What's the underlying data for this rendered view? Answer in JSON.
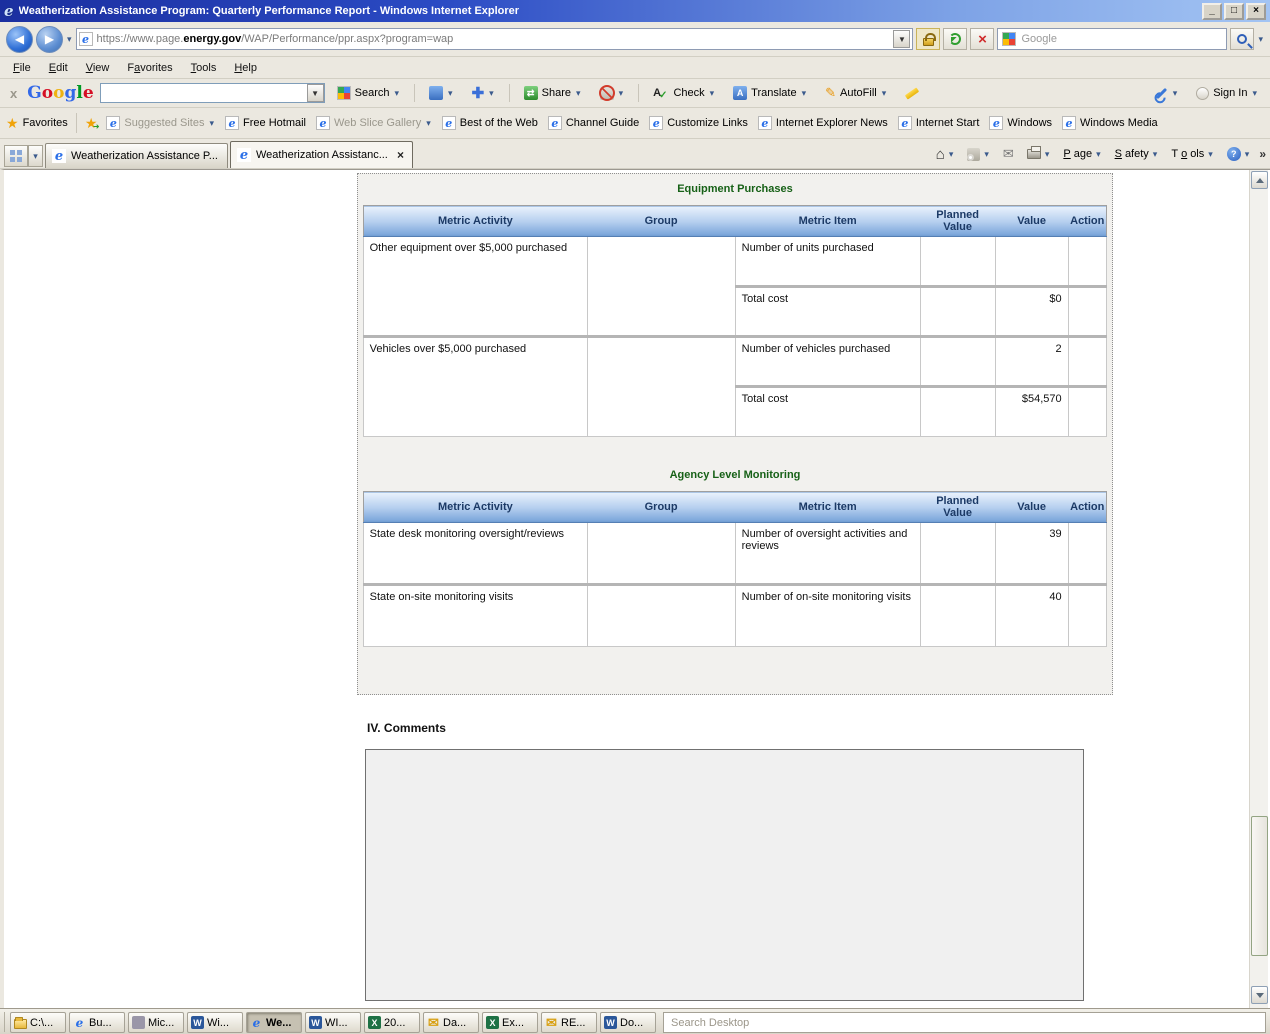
{
  "window": {
    "title": "Weatherization Assistance Program: Quarterly Performance Report - Windows Internet Explorer"
  },
  "navigation": {
    "url_prefix": "https://www.page.",
    "url_domain": "energy.gov",
    "url_path": "/WAP/Performance/ppr.aspx?program=wap",
    "search_hint": "Google"
  },
  "menu_bar": {
    "items": [
      {
        "label": "File",
        "accel": 0
      },
      {
        "label": "Edit",
        "accel": 0
      },
      {
        "label": "View",
        "accel": 0
      },
      {
        "label": "Favorites",
        "accel": 1
      },
      {
        "label": "Tools",
        "accel": 0
      },
      {
        "label": "Help",
        "accel": 0
      }
    ]
  },
  "google_toolbar": {
    "logo": "Google",
    "logo_colors": [
      "#3369e8",
      "#d50f25",
      "#eeb211",
      "#3369e8",
      "#009925",
      "#d50f25"
    ],
    "search_label": "Search",
    "share_label": "Share",
    "check_label": "Check",
    "translate_label": "Translate",
    "autofill_label": "AutoFill",
    "sign_in_label": "Sign In"
  },
  "favorites_bar": {
    "label": "Favorites",
    "links": [
      {
        "label": "Suggested Sites",
        "muted": true,
        "dropdown": true
      },
      {
        "label": "Free Hotmail",
        "muted": false,
        "dropdown": false
      },
      {
        "label": "Web Slice Gallery",
        "muted": true,
        "dropdown": true
      },
      {
        "label": "Best of the Web",
        "muted": false,
        "dropdown": false
      },
      {
        "label": "Channel Guide",
        "muted": false,
        "dropdown": false
      },
      {
        "label": "Customize Links",
        "muted": false,
        "dropdown": false
      },
      {
        "label": "Internet Explorer News",
        "muted": false,
        "dropdown": false
      },
      {
        "label": "Internet Start",
        "muted": false,
        "dropdown": false
      },
      {
        "label": "Windows",
        "muted": false,
        "dropdown": false
      },
      {
        "label": "Windows Media",
        "muted": false,
        "dropdown": false
      }
    ]
  },
  "tab_bar": {
    "tabs": [
      {
        "label": "Weatherization Assistance P...",
        "active": false,
        "closable": false
      },
      {
        "label": "Weatherization Assistanc...",
        "active": true,
        "closable": true
      }
    ]
  },
  "command_bar": {
    "menus": [
      {
        "label": "Page",
        "accel": 0
      },
      {
        "label": "Safety",
        "accel": 0
      },
      {
        "label": "Tools",
        "accel": 1
      }
    ]
  },
  "report": {
    "sections": [
      {
        "title": "Equipment Purchases",
        "headers": [
          "Metric Activity",
          "Group",
          "Metric Item",
          "Planned Value",
          "Value",
          "Action"
        ],
        "rows": [
          {
            "activity": "Other equipment over $5,000 purchased",
            "group": "",
            "items": [
              {
                "item": "Number of units purchased",
                "planned": "",
                "value": "",
                "action": ""
              },
              {
                "item": "Total cost",
                "planned": "",
                "value": "$0",
                "action": ""
              }
            ]
          },
          {
            "activity": "Vehicles over $5,000 purchased",
            "group": "",
            "items": [
              {
                "item": "Number of vehicles purchased",
                "planned": "",
                "value": "2",
                "action": ""
              },
              {
                "item": "Total cost",
                "planned": "",
                "value": "$54,570",
                "action": ""
              }
            ]
          }
        ]
      },
      {
        "title": "Agency Level Monitoring",
        "headers": [
          "Metric Activity",
          "Group",
          "Metric Item",
          "Planned Value",
          "Value",
          "Action"
        ],
        "rows": [
          {
            "activity": "State desk monitoring oversight/reviews",
            "group": "",
            "items": [
              {
                "item": "Number of oversight activities and reviews",
                "planned": "",
                "value": "39",
                "action": ""
              }
            ]
          },
          {
            "activity": "State on-site monitoring visits",
            "group": "",
            "items": [
              {
                "item": "Number of on-site monitoring visits",
                "planned": "",
                "value": "40",
                "action": ""
              }
            ]
          }
        ]
      }
    ],
    "comments_heading": "IV. Comments",
    "comments_value": ""
  },
  "taskbar": {
    "buttons": [
      {
        "icon": "folder-icon",
        "label": "C:\\...",
        "active": false
      },
      {
        "icon": "ie-icon",
        "label": "Bu...",
        "active": false
      },
      {
        "icon": "app-icon",
        "label": "Mic...",
        "active": false
      },
      {
        "icon": "word-icon",
        "label": "Wi...",
        "active": false
      },
      {
        "icon": "ie-icon",
        "label": "We...",
        "active": true
      },
      {
        "icon": "word-icon",
        "label": "WI...",
        "active": false
      },
      {
        "icon": "excel-icon",
        "label": "20...",
        "active": false
      },
      {
        "icon": "mail-icon",
        "label": "Da...",
        "active": false
      },
      {
        "icon": "excel-icon",
        "label": "Ex...",
        "active": false
      },
      {
        "icon": "mail-icon",
        "label": "RE...",
        "active": false
      },
      {
        "icon": "word-icon",
        "label": "Do...",
        "active": false
      }
    ],
    "search_placeholder": "Search Desktop"
  }
}
